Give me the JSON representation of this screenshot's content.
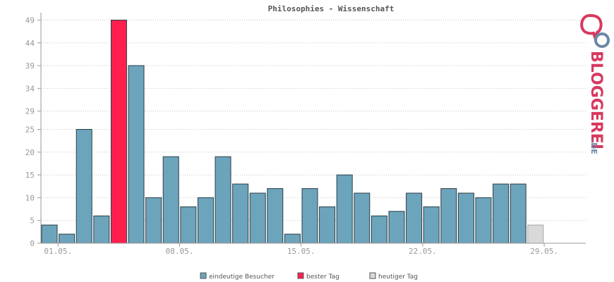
{
  "chart_data": {
    "type": "bar",
    "title": "Philosophies - Wissenschaft",
    "xlabel": "",
    "ylabel": "",
    "ylim": [
      0,
      50
    ],
    "yticks": [
      0,
      5,
      10,
      15,
      20,
      25,
      29,
      34,
      39,
      44,
      49
    ],
    "xtick_labels": [
      {
        "index": 1,
        "label": "01.05."
      },
      {
        "index": 8,
        "label": "08.05."
      },
      {
        "index": 15,
        "label": "15.05."
      },
      {
        "index": 22,
        "label": "22.05."
      },
      {
        "index": 29,
        "label": "29.05."
      }
    ],
    "grid": true,
    "values": [
      4,
      2,
      25,
      6,
      49,
      39,
      10,
      19,
      8,
      10,
      19,
      13,
      11,
      12,
      2,
      12,
      8,
      15,
      11,
      6,
      7,
      11,
      8,
      12,
      11,
      10,
      13,
      13,
      4
    ],
    "highlight_index": 4,
    "today_index": 28,
    "colors": {
      "visitors": "#6ca4bb",
      "best_day": "#ff1f4f",
      "today": "#d9d9d9",
      "bar_border": "#2a3e48",
      "today_border": "#a6a6a6",
      "axis": "#9a9a9a",
      "grid": "#c8c8c8"
    },
    "legend": [
      {
        "label": "eindeutige Besucher",
        "color": "#6ca4bb"
      },
      {
        "label": "bester Tag",
        "color": "#ff1f4f"
      },
      {
        "label": "heutiger Tag",
        "color": "#d9d9d9"
      }
    ]
  },
  "logo": {
    "brand": "BLOGGEREI",
    "suffix": ".DE",
    "colors": {
      "pink": "#d8385e",
      "blue": "#6b87a3",
      "gray": "#9aa9b5"
    }
  }
}
